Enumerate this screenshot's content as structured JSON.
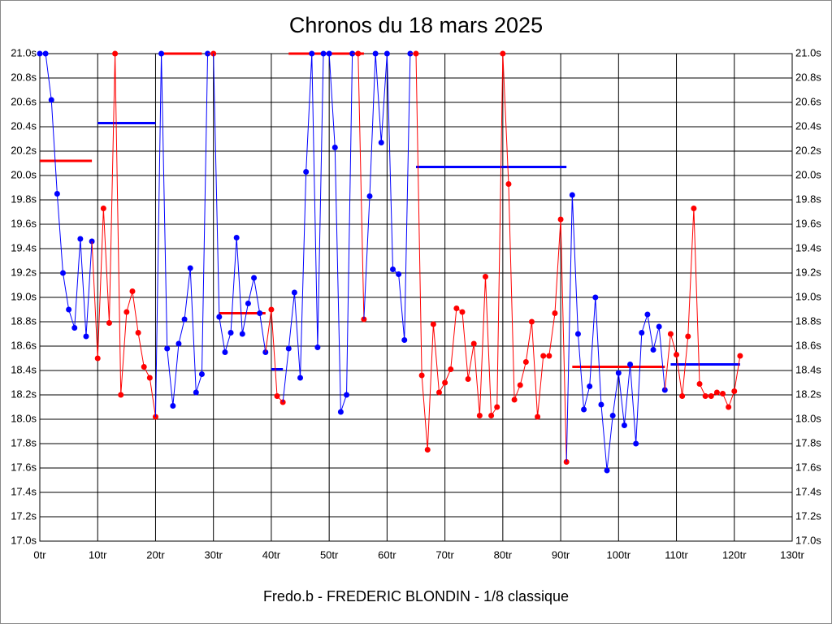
{
  "chart_data": {
    "type": "line",
    "title": "Chronos du 18 mars 2025",
    "footer": "Fredo.b - FREDERIC BLONDIN - 1/8 classique",
    "grid": true,
    "xlim": [
      0,
      130
    ],
    "ylim": [
      17,
      21
    ],
    "xticks": [
      {
        "value": 0,
        "label": "0tr"
      },
      {
        "value": 10,
        "label": "10tr"
      },
      {
        "value": 20,
        "label": "20tr"
      },
      {
        "value": 30,
        "label": "30tr"
      },
      {
        "value": 40,
        "label": "40tr"
      },
      {
        "value": 50,
        "label": "50tr"
      },
      {
        "value": 60,
        "label": "60tr"
      },
      {
        "value": 70,
        "label": "70tr"
      },
      {
        "value": 80,
        "label": "80tr"
      },
      {
        "value": 90,
        "label": "90tr"
      },
      {
        "value": 100,
        "label": "100tr"
      },
      {
        "value": 110,
        "label": "110tr"
      },
      {
        "value": 120,
        "label": "120tr"
      },
      {
        "value": 130,
        "label": "130tr"
      }
    ],
    "yticks": [
      {
        "value": 17,
        "label": "17.0s"
      },
      {
        "value": 17.2,
        "label": "17.2s"
      },
      {
        "value": 17.4,
        "label": "17.4s"
      },
      {
        "value": 17.6,
        "label": "17.6s"
      },
      {
        "value": 17.8,
        "label": "17.8s"
      },
      {
        "value": 18,
        "label": "18.0s"
      },
      {
        "value": 18.2,
        "label": "18.2s"
      },
      {
        "value": 18.4,
        "label": "18.4s"
      },
      {
        "value": 18.6,
        "label": "18.6s"
      },
      {
        "value": 18.8,
        "label": "18.8s"
      },
      {
        "value": 19,
        "label": "19.0s"
      },
      {
        "value": 19.2,
        "label": "19.2s"
      },
      {
        "value": 19.4,
        "label": "19.4s"
      },
      {
        "value": 19.6,
        "label": "19.6s"
      },
      {
        "value": 19.8,
        "label": "19.8s"
      },
      {
        "value": 20,
        "label": "20.0s"
      },
      {
        "value": 20.2,
        "label": "20.2s"
      },
      {
        "value": 20.4,
        "label": "20.4s"
      },
      {
        "value": 20.6,
        "label": "20.6s"
      },
      {
        "value": 20.8,
        "label": "20.8s"
      },
      {
        "value": 21,
        "label": "21.0s"
      }
    ],
    "series": [
      {
        "color": "#0000ff",
        "x": [
          0,
          1,
          2,
          3,
          4,
          5,
          6,
          7,
          8,
          9
        ],
        "values": [
          21.0,
          21.0,
          20.62,
          19.85,
          19.2,
          18.9,
          18.75,
          19.48,
          18.68,
          19.46
        ]
      },
      {
        "color": "#ff0000",
        "x": [
          10,
          11,
          12,
          13,
          14,
          15,
          16,
          17,
          18,
          19,
          20
        ],
        "values": [
          18.5,
          19.73,
          18.79,
          21.0,
          18.2,
          18.88,
          19.05,
          18.71,
          18.43,
          18.34,
          18.02
        ]
      },
      {
        "color": "#0000ff",
        "x": [
          21,
          22,
          23,
          24,
          25,
          26,
          27,
          28,
          29
        ],
        "values": [
          21.0,
          18.58,
          18.11,
          18.62,
          18.82,
          19.24,
          18.22,
          18.37,
          21.0
        ]
      },
      {
        "color": "#ff0000",
        "x": [
          30
        ],
        "values": [
          21.0
        ]
      },
      {
        "color": "#0000ff",
        "x": [
          31,
          32,
          33,
          34,
          35,
          36,
          37,
          38,
          39
        ],
        "values": [
          18.84,
          18.55,
          18.71,
          19.49,
          18.7,
          18.95,
          19.16,
          18.87,
          18.55
        ]
      },
      {
        "color": "#ff0000",
        "x": [
          40,
          41,
          42
        ],
        "values": [
          18.9,
          18.19,
          18.14
        ]
      },
      {
        "color": "#0000ff",
        "x": [
          43,
          44,
          45,
          46,
          47,
          48,
          49,
          50,
          51,
          52,
          53,
          54
        ],
        "values": [
          18.58,
          19.04,
          18.34,
          20.03,
          21.0,
          18.59,
          21.0,
          21.0,
          20.23,
          18.06,
          18.2,
          21.0
        ]
      },
      {
        "color": "#ff0000",
        "x": [
          55,
          56
        ],
        "values": [
          21.0,
          18.82
        ]
      },
      {
        "color": "#0000ff",
        "x": [
          57,
          58,
          59,
          60,
          61,
          62,
          63,
          64
        ],
        "values": [
          19.83,
          21.0,
          20.27,
          21.0,
          19.23,
          19.19,
          18.65,
          21.0
        ]
      },
      {
        "color": "#ff0000",
        "x": [
          65,
          66,
          67,
          68,
          69,
          70,
          71,
          72,
          73,
          74,
          75,
          76,
          77,
          78,
          79,
          80,
          81,
          82,
          83,
          84,
          85,
          86,
          87,
          88,
          89,
          90,
          91
        ],
        "values": [
          21.0,
          18.36,
          17.75,
          18.78,
          18.22,
          18.3,
          18.41,
          18.91,
          18.88,
          18.33,
          18.62,
          18.03,
          19.17,
          18.03,
          18.1,
          21.0,
          19.93,
          18.16,
          18.28,
          18.47,
          18.8,
          18.02,
          18.52,
          18.52,
          18.87,
          19.64,
          17.65
        ]
      },
      {
        "color": "#0000ff",
        "x": [
          92,
          93,
          94,
          95,
          96,
          97,
          98,
          99,
          100,
          101,
          102,
          103,
          104,
          105,
          106,
          107,
          108
        ],
        "values": [
          19.84,
          18.7,
          18.08,
          18.27,
          19.0,
          18.12,
          17.58,
          18.03,
          18.38,
          17.95,
          18.45,
          17.8,
          18.71,
          18.86,
          18.57,
          18.76,
          18.24
        ]
      },
      {
        "color": "#ff0000",
        "x": [
          109,
          110,
          111,
          112,
          113,
          114,
          115,
          116,
          117,
          118,
          119,
          120,
          121
        ],
        "values": [
          18.7,
          18.53,
          18.19,
          18.68,
          19.73,
          18.29,
          18.19,
          18.19,
          18.22,
          18.21,
          18.1,
          18.23,
          18.52
        ]
      }
    ],
    "averages": [
      {
        "color": "#ff0000",
        "x": [
          0,
          9
        ],
        "value": 20.12
      },
      {
        "color": "#0000ff",
        "x": [
          10,
          20
        ],
        "value": 20.43
      },
      {
        "color": "#ff0000",
        "x": [
          21,
          28
        ],
        "value": 21.0
      },
      {
        "color": "#ff0000",
        "x": [
          31,
          39
        ],
        "value": 18.87
      },
      {
        "color": "#0000ff",
        "x": [
          40,
          42
        ],
        "value": 18.41
      },
      {
        "color": "#ff0000",
        "x": [
          43,
          56
        ],
        "value": 21.0
      },
      {
        "color": "#0000ff",
        "x": [
          65,
          91
        ],
        "value": 20.07
      },
      {
        "color": "#ff0000",
        "x": [
          92,
          108
        ],
        "value": 18.43
      },
      {
        "color": "#0000ff",
        "x": [
          109,
          121
        ],
        "value": 18.45
      }
    ]
  }
}
